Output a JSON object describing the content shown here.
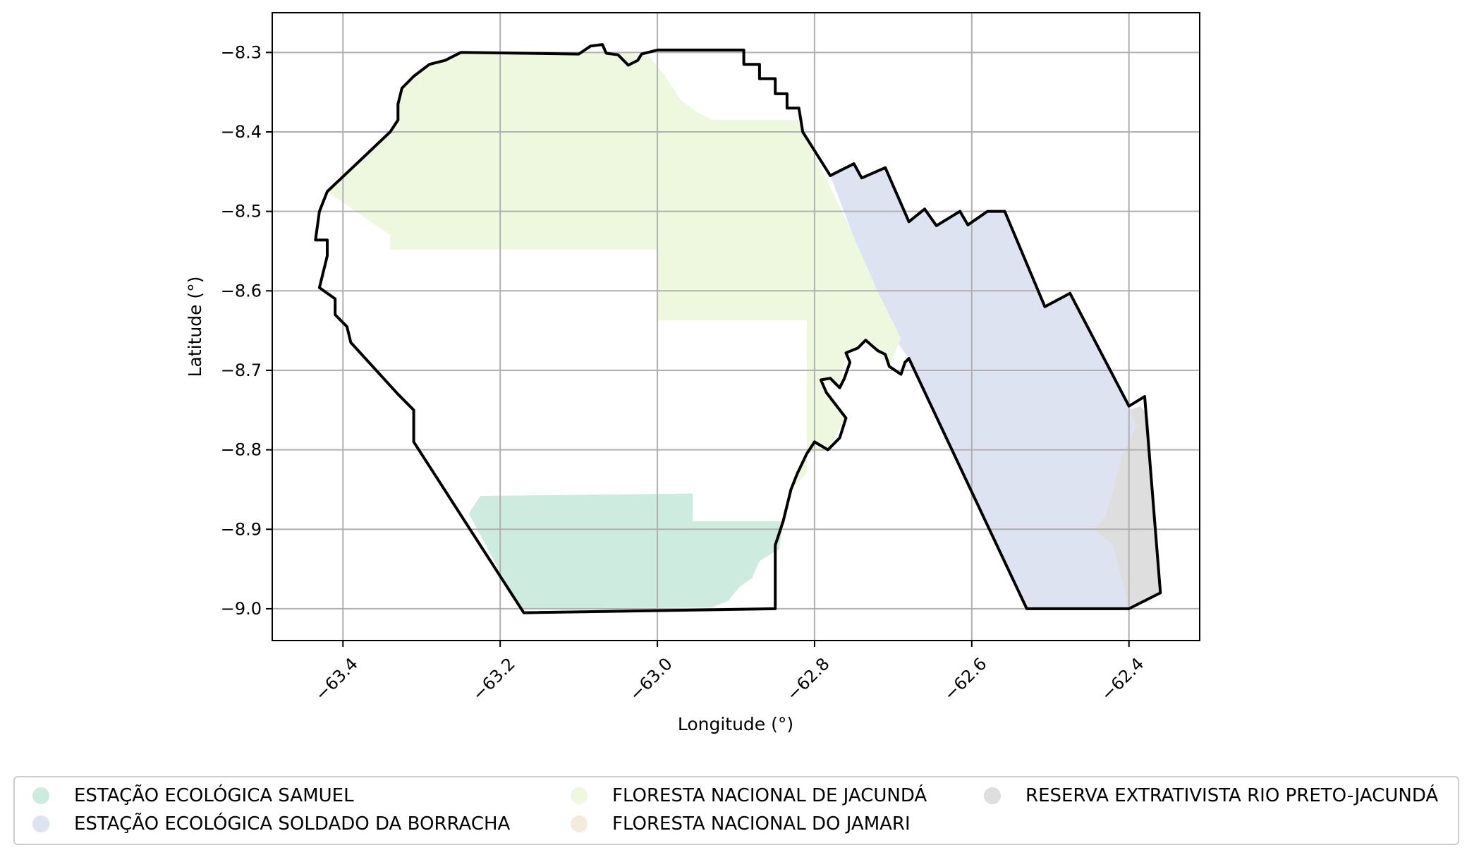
{
  "chart_data": {
    "type": "map",
    "xlabel": "Longitude (°)",
    "ylabel": "Latitude (°)",
    "xlim": [
      -63.49,
      -62.31
    ],
    "ylim": [
      -9.04,
      -8.25
    ],
    "x_ticks": [
      {
        "value": -63.4,
        "label": "−63.4"
      },
      {
        "value": -63.2,
        "label": "−63.2"
      },
      {
        "value": -63.0,
        "label": "−63.0"
      },
      {
        "value": -62.8,
        "label": "−62.8"
      },
      {
        "value": -62.6,
        "label": "−62.6"
      },
      {
        "value": -62.4,
        "label": "−62.4"
      }
    ],
    "y_ticks": [
      {
        "value": -8.3,
        "label": "−8.3"
      },
      {
        "value": -8.4,
        "label": "−8.4"
      },
      {
        "value": -8.5,
        "label": "−8.5"
      },
      {
        "value": -8.6,
        "label": "−8.6"
      },
      {
        "value": -8.7,
        "label": "−8.7"
      },
      {
        "value": -8.8,
        "label": "−8.8"
      },
      {
        "value": -8.9,
        "label": "−8.9"
      },
      {
        "value": -9.0,
        "label": "−9.0"
      }
    ],
    "grid": true,
    "legend_position": "bottom",
    "boundary_color": "#000000",
    "boundary": [
      [
        -63.42,
        -8.475
      ],
      [
        -63.34,
        -8.4
      ],
      [
        -63.33,
        -8.385
      ],
      [
        -63.33,
        -8.365
      ],
      [
        -63.325,
        -8.345
      ],
      [
        -63.31,
        -8.33
      ],
      [
        -63.29,
        -8.315
      ],
      [
        -63.27,
        -8.31
      ],
      [
        -63.25,
        -8.3
      ],
      [
        -63.1,
        -8.302
      ],
      [
        -63.085,
        -8.292
      ],
      [
        -63.07,
        -8.29
      ],
      [
        -63.065,
        -8.301
      ],
      [
        -63.05,
        -8.303
      ],
      [
        -63.037,
        -8.316
      ],
      [
        -63.025,
        -8.31
      ],
      [
        -63.02,
        -8.302
      ],
      [
        -63.0,
        -8.297
      ],
      [
        -62.89,
        -8.297
      ],
      [
        -62.89,
        -8.315
      ],
      [
        -62.87,
        -8.315
      ],
      [
        -62.87,
        -8.333
      ],
      [
        -62.85,
        -8.333
      ],
      [
        -62.85,
        -8.352
      ],
      [
        -62.835,
        -8.352
      ],
      [
        -62.835,
        -8.37
      ],
      [
        -62.82,
        -8.37
      ],
      [
        -62.815,
        -8.4
      ],
      [
        -62.78,
        -8.455
      ],
      [
        -62.75,
        -8.44
      ],
      [
        -62.74,
        -8.458
      ],
      [
        -62.71,
        -8.445
      ],
      [
        -62.68,
        -8.513
      ],
      [
        -62.66,
        -8.497
      ],
      [
        -62.645,
        -8.518
      ],
      [
        -62.615,
        -8.5
      ],
      [
        -62.605,
        -8.517
      ],
      [
        -62.58,
        -8.5
      ],
      [
        -62.558,
        -8.5
      ],
      [
        -62.507,
        -8.62
      ],
      [
        -62.475,
        -8.603
      ],
      [
        -62.4,
        -8.745
      ],
      [
        -62.38,
        -8.733
      ],
      [
        -62.36,
        -8.98
      ],
      [
        -62.4,
        -9.0
      ],
      [
        -62.53,
        -9.0
      ],
      [
        -62.68,
        -8.685
      ],
      [
        -62.685,
        -8.69
      ],
      [
        -62.69,
        -8.705
      ],
      [
        -62.705,
        -8.695
      ],
      [
        -62.71,
        -8.68
      ],
      [
        -62.72,
        -8.675
      ],
      [
        -62.735,
        -8.662
      ],
      [
        -62.745,
        -8.672
      ],
      [
        -62.76,
        -8.678
      ],
      [
        -62.755,
        -8.69
      ],
      [
        -62.762,
        -8.71
      ],
      [
        -62.768,
        -8.722
      ],
      [
        -62.78,
        -8.71
      ],
      [
        -62.792,
        -8.712
      ],
      [
        -62.785,
        -8.728
      ],
      [
        -62.76,
        -8.76
      ],
      [
        -62.768,
        -8.785
      ],
      [
        -62.783,
        -8.8
      ],
      [
        -62.8,
        -8.79
      ],
      [
        -62.81,
        -8.805
      ],
      [
        -62.822,
        -8.83
      ],
      [
        -62.83,
        -8.85
      ],
      [
        -62.84,
        -8.89
      ],
      [
        -62.85,
        -8.92
      ],
      [
        -62.85,
        -9.0
      ],
      [
        -63.17,
        -9.005
      ],
      [
        -63.31,
        -8.79
      ],
      [
        -63.31,
        -8.75
      ],
      [
        -63.33,
        -8.73
      ],
      [
        -63.39,
        -8.665
      ],
      [
        -63.395,
        -8.645
      ],
      [
        -63.41,
        -8.63
      ],
      [
        -63.41,
        -8.61
      ],
      [
        -63.43,
        -8.596
      ],
      [
        -63.42,
        -8.556
      ],
      [
        -63.42,
        -8.536
      ],
      [
        -63.435,
        -8.536
      ],
      [
        -63.43,
        -8.5
      ],
      [
        -63.42,
        -8.475
      ]
    ],
    "series": [
      {
        "name": "ESTAÇÃO ECOLÓGICA SAMUEL",
        "color": "#cdebdf",
        "polygon": [
          [
            -63.24,
            -8.88
          ],
          [
            -63.225,
            -8.858
          ],
          [
            -62.955,
            -8.855
          ],
          [
            -62.955,
            -8.89
          ],
          [
            -62.84,
            -8.89
          ],
          [
            -62.845,
            -8.925
          ],
          [
            -62.87,
            -8.94
          ],
          [
            -62.88,
            -8.962
          ],
          [
            -62.895,
            -8.972
          ],
          [
            -62.91,
            -8.99
          ],
          [
            -62.93,
            -8.998
          ],
          [
            -63.175,
            -9.0
          ]
        ]
      },
      {
        "name": "ESTAÇÃO ECOLÓGICA SOLDADO DA BORRACHA",
        "color": "#dee3f2",
        "polygon": [
          [
            -62.78,
            -8.455
          ],
          [
            -62.75,
            -8.44
          ],
          [
            -62.74,
            -8.458
          ],
          [
            -62.71,
            -8.445
          ],
          [
            -62.68,
            -8.513
          ],
          [
            -62.66,
            -8.497
          ],
          [
            -62.645,
            -8.518
          ],
          [
            -62.615,
            -8.5
          ],
          [
            -62.605,
            -8.517
          ],
          [
            -62.58,
            -8.5
          ],
          [
            -62.558,
            -8.5
          ],
          [
            -62.507,
            -8.62
          ],
          [
            -62.475,
            -8.603
          ],
          [
            -62.4,
            -8.745
          ],
          [
            -62.39,
            -8.76
          ],
          [
            -62.4,
            -9.0
          ],
          [
            -62.53,
            -9.0
          ],
          [
            -62.68,
            -8.685
          ],
          [
            -62.705,
            -8.65
          ]
        ]
      },
      {
        "name": "FLORESTA NACIONAL DE JACUNDÁ",
        "color": "#eef8de",
        "polygon": [
          [
            -63.42,
            -8.475
          ],
          [
            -63.34,
            -8.4
          ],
          [
            -63.33,
            -8.385
          ],
          [
            -63.33,
            -8.365
          ],
          [
            -63.325,
            -8.345
          ],
          [
            -63.31,
            -8.33
          ],
          [
            -63.29,
            -8.315
          ],
          [
            -63.27,
            -8.31
          ],
          [
            -63.25,
            -8.3
          ],
          [
            -63.04,
            -8.3
          ],
          [
            -63.01,
            -8.305
          ],
          [
            -62.99,
            -8.33
          ],
          [
            -62.97,
            -8.36
          ],
          [
            -62.95,
            -8.375
          ],
          [
            -62.93,
            -8.385
          ],
          [
            -62.86,
            -8.385
          ],
          [
            -62.82,
            -8.385
          ],
          [
            -62.8,
            -8.43
          ],
          [
            -62.76,
            -8.51
          ],
          [
            -62.72,
            -8.6
          ],
          [
            -62.69,
            -8.66
          ],
          [
            -62.705,
            -8.695
          ],
          [
            -62.735,
            -8.662
          ],
          [
            -62.76,
            -8.678
          ],
          [
            -62.768,
            -8.722
          ],
          [
            -62.792,
            -8.712
          ],
          [
            -62.76,
            -8.76
          ],
          [
            -62.783,
            -8.8
          ],
          [
            -62.81,
            -8.805
          ],
          [
            -62.83,
            -8.85
          ],
          [
            -62.81,
            -8.83
          ],
          [
            -62.81,
            -8.637
          ],
          [
            -63.0,
            -8.637
          ],
          [
            -63.0,
            -8.548
          ],
          [
            -63.34,
            -8.548
          ],
          [
            -63.34,
            -8.53
          ]
        ]
      },
      {
        "name": "FLORESTA NACIONAL DO JAMARI",
        "color": "#f5ebdd",
        "polygon": []
      },
      {
        "name": "RESERVA EXTRATIVISTA RIO PRETO-JACUNDÁ",
        "color": "#dedede",
        "polygon": [
          [
            -62.4,
            -8.75
          ],
          [
            -62.385,
            -8.745
          ],
          [
            -62.375,
            -8.76
          ],
          [
            -62.362,
            -8.98
          ],
          [
            -62.4,
            -9.0
          ],
          [
            -62.41,
            -8.96
          ],
          [
            -62.42,
            -8.92
          ],
          [
            -62.445,
            -8.9
          ],
          [
            -62.43,
            -8.885
          ],
          [
            -62.42,
            -8.85
          ],
          [
            -62.41,
            -8.81
          ],
          [
            -62.39,
            -8.77
          ]
        ]
      }
    ]
  }
}
